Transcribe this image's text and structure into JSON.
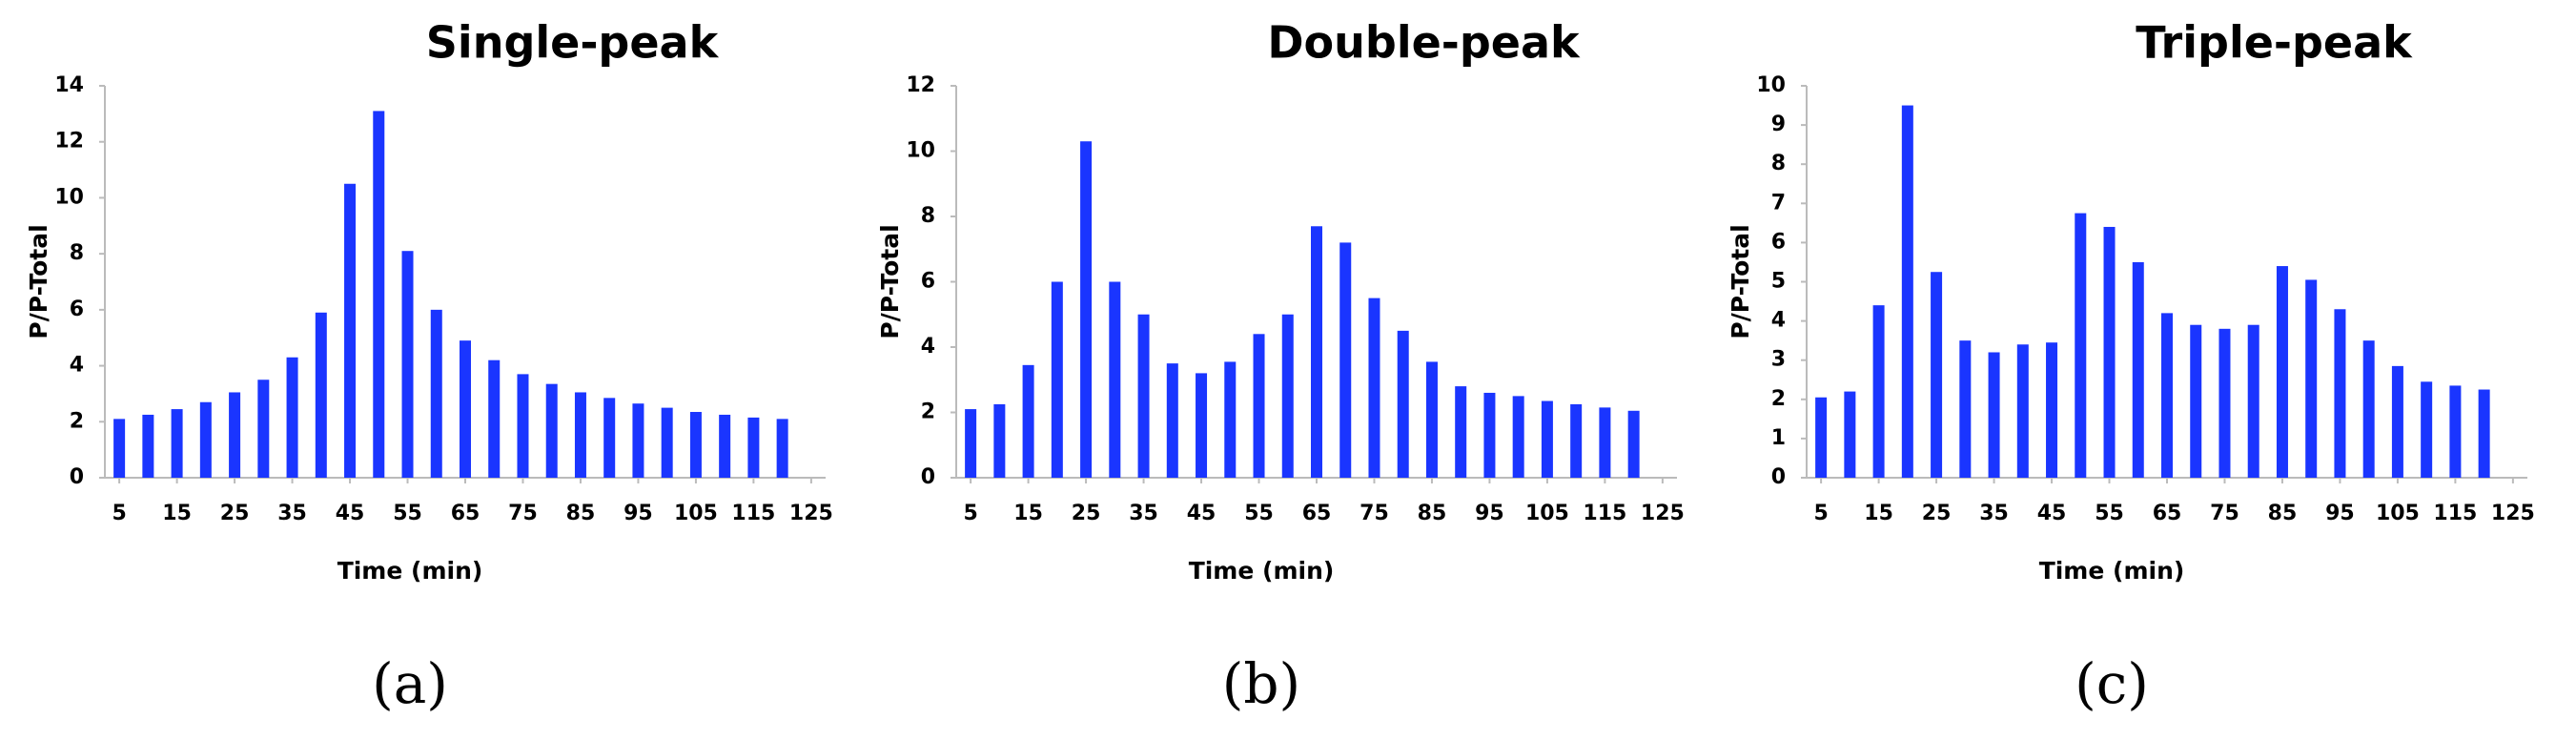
{
  "chart_data": [
    {
      "type": "bar",
      "title": "Single-peak",
      "label": "(a)",
      "xlabel": "Time (min)",
      "ylabel": "P/P-Total",
      "color": "#1a35ff",
      "x": [
        5,
        10,
        15,
        20,
        25,
        30,
        35,
        40,
        45,
        50,
        55,
        60,
        65,
        70,
        75,
        80,
        85,
        90,
        95,
        100,
        105,
        110,
        115,
        120
      ],
      "values": [
        2.1,
        2.25,
        2.45,
        2.7,
        3.05,
        3.5,
        4.3,
        5.9,
        10.5,
        13.1,
        8.1,
        6.0,
        4.9,
        4.2,
        3.7,
        3.35,
        3.05,
        2.85,
        2.65,
        2.5,
        2.35,
        2.25,
        2.15,
        2.1
      ],
      "xlim": [
        2.5,
        127.5
      ],
      "xticks": [
        5,
        15,
        25,
        35,
        45,
        55,
        65,
        75,
        85,
        95,
        105,
        115,
        125
      ],
      "ylim": [
        0,
        14
      ],
      "yticks": [
        0,
        2,
        4,
        6,
        8,
        10,
        12,
        14
      ]
    },
    {
      "type": "bar",
      "title": "Double-peak",
      "label": "(b)",
      "xlabel": "Time (min)",
      "ylabel": "P/P-Total",
      "color": "#1a35ff",
      "x": [
        5,
        10,
        15,
        20,
        25,
        30,
        35,
        40,
        45,
        50,
        55,
        60,
        65,
        70,
        75,
        80,
        85,
        90,
        95,
        100,
        105,
        110,
        115,
        120
      ],
      "values": [
        2.1,
        2.25,
        3.45,
        6.0,
        10.3,
        6.0,
        5.0,
        3.5,
        3.2,
        3.55,
        4.4,
        5.0,
        7.7,
        7.2,
        5.5,
        4.5,
        3.55,
        2.8,
        2.6,
        2.5,
        2.35,
        2.25,
        2.15,
        2.05
      ],
      "xlim": [
        2.5,
        127.5
      ],
      "xticks": [
        5,
        15,
        25,
        35,
        45,
        55,
        65,
        75,
        85,
        95,
        105,
        115,
        125
      ],
      "ylim": [
        0,
        12
      ],
      "yticks": [
        0,
        2,
        4,
        6,
        8,
        10,
        12
      ]
    },
    {
      "type": "bar",
      "title": "Triple-peak",
      "label": "(c)",
      "xlabel": "Time (min)",
      "ylabel": "P/P-Total",
      "color": "#1a35ff",
      "x": [
        5,
        10,
        15,
        20,
        25,
        30,
        35,
        40,
        45,
        50,
        55,
        60,
        65,
        70,
        75,
        80,
        85,
        90,
        95,
        100,
        105,
        110,
        115,
        120
      ],
      "values": [
        2.05,
        2.2,
        4.4,
        9.5,
        5.25,
        3.5,
        3.2,
        3.4,
        3.45,
        6.75,
        6.4,
        5.5,
        4.2,
        3.9,
        3.8,
        3.9,
        5.4,
        5.05,
        4.3,
        3.5,
        2.85,
        2.45,
        2.35,
        2.25
      ],
      "xlim": [
        2.5,
        127.5
      ],
      "xticks": [
        5,
        15,
        25,
        35,
        45,
        55,
        65,
        75,
        85,
        95,
        105,
        115,
        125
      ],
      "ylim": [
        0,
        10
      ],
      "yticks": [
        0,
        1,
        2,
        3,
        4,
        5,
        6,
        7,
        8,
        9,
        10
      ]
    }
  ]
}
